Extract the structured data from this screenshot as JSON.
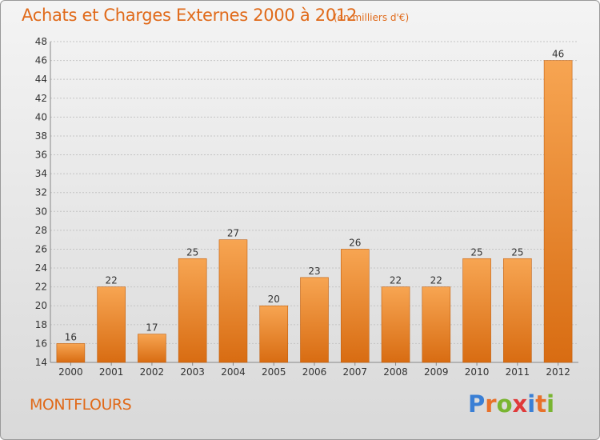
{
  "header": {
    "title": "Achats et Charges Externes 2000 à 2012",
    "subtitle": "(en milliers d'€)"
  },
  "commune": "MONTFLOURS",
  "logo": {
    "text": "Proxiti",
    "letters": [
      {
        "char": "P",
        "color": "#3a7fd5"
      },
      {
        "char": "r",
        "color": "#e8712a"
      },
      {
        "char": "o",
        "color": "#79b531"
      },
      {
        "char": "x",
        "color": "#e03a3a"
      },
      {
        "char": "i",
        "color": "#3a7fd5"
      },
      {
        "char": "t",
        "color": "#e8712a"
      },
      {
        "char": "i",
        "color": "#79b531"
      }
    ]
  },
  "colors": {
    "bar_light": "#f7a552",
    "bar_dark": "#d86c12",
    "bar_edge": "#c26010",
    "accent": "#e06a1a"
  },
  "chart_data": {
    "type": "bar",
    "categories": [
      "2000",
      "2001",
      "2002",
      "2003",
      "2004",
      "2005",
      "2006",
      "2007",
      "2008",
      "2009",
      "2010",
      "2011",
      "2012"
    ],
    "values": [
      16,
      22,
      17,
      25,
      27,
      20,
      23,
      26,
      22,
      22,
      25,
      25,
      46
    ],
    "title": "Achats et Charges Externes 2000 à 2012",
    "xlabel": "",
    "ylabel": "",
    "ylim": [
      14,
      48
    ],
    "yticks": [
      14,
      16,
      18,
      20,
      22,
      24,
      26,
      28,
      30,
      32,
      34,
      36,
      38,
      40,
      42,
      44,
      46,
      48
    ],
    "grid": true
  }
}
